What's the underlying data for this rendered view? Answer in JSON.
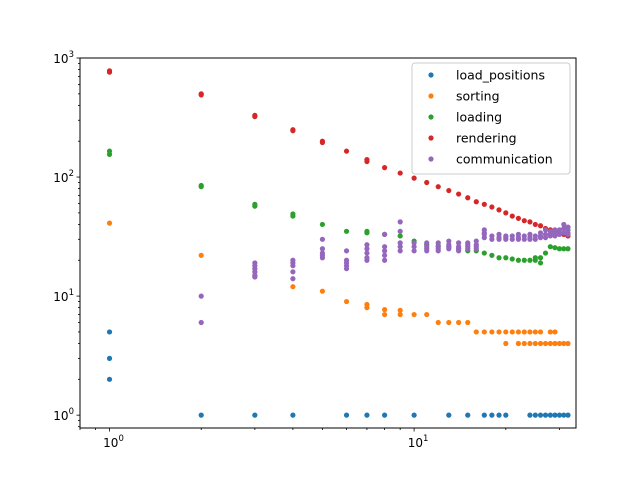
{
  "chart_data": {
    "type": "scatter",
    "title": "",
    "xlabel": "",
    "ylabel": "",
    "xscale": "log",
    "yscale": "log",
    "xlim": [
      0.8,
      34
    ],
    "ylim": [
      0.78,
      1000
    ],
    "grid": false,
    "legend_position": "top-right",
    "x_ticks": [
      {
        "value": 1,
        "base": "10",
        "exp": "0"
      },
      {
        "value": 10,
        "base": "10",
        "exp": "1"
      }
    ],
    "y_ticks": [
      {
        "value": 1,
        "base": "10",
        "exp": "0"
      },
      {
        "value": 10,
        "base": "10",
        "exp": "1"
      },
      {
        "value": 100,
        "base": "10",
        "exp": "2"
      },
      {
        "value": 1000,
        "base": "10",
        "exp": "3"
      }
    ],
    "series": [
      {
        "name": "load_positions",
        "color": "#1f77b4",
        "points": [
          [
            1,
            5
          ],
          [
            1,
            3
          ],
          [
            1,
            2
          ],
          [
            2,
            1
          ],
          [
            3,
            1
          ],
          [
            4,
            1
          ],
          [
            6,
            1
          ],
          [
            7,
            1
          ],
          [
            8,
            1
          ],
          [
            10,
            1
          ],
          [
            13,
            1
          ],
          [
            15,
            1
          ],
          [
            17,
            1
          ],
          [
            18,
            1
          ],
          [
            19,
            1
          ],
          [
            20,
            1
          ],
          [
            24,
            1
          ],
          [
            25,
            1
          ],
          [
            26,
            1
          ],
          [
            27,
            1
          ],
          [
            28,
            1
          ],
          [
            29,
            1
          ],
          [
            30,
            1
          ],
          [
            31,
            1
          ],
          [
            32,
            1
          ]
        ]
      },
      {
        "name": "sorting",
        "color": "#ff7f0e",
        "points": [
          [
            1,
            41
          ],
          [
            2,
            22
          ],
          [
            3,
            16
          ],
          [
            3,
            14.5
          ],
          [
            4,
            12
          ],
          [
            5,
            11
          ],
          [
            6,
            9
          ],
          [
            7,
            8.5
          ],
          [
            7,
            8
          ],
          [
            8,
            7.7
          ],
          [
            8,
            7
          ],
          [
            9,
            7.6
          ],
          [
            9,
            7
          ],
          [
            10,
            7
          ],
          [
            11,
            7
          ],
          [
            12,
            6
          ],
          [
            13,
            6
          ],
          [
            14,
            6
          ],
          [
            15,
            6
          ],
          [
            16,
            5
          ],
          [
            17,
            5
          ],
          [
            18,
            5
          ],
          [
            19,
            5
          ],
          [
            20,
            5
          ],
          [
            20,
            4
          ],
          [
            21,
            5
          ],
          [
            22,
            4
          ],
          [
            22,
            5
          ],
          [
            23,
            4
          ],
          [
            23,
            5
          ],
          [
            24,
            4
          ],
          [
            24,
            5
          ],
          [
            25,
            4
          ],
          [
            25,
            5
          ],
          [
            26,
            4
          ],
          [
            26,
            5
          ],
          [
            27,
            4
          ],
          [
            28,
            4
          ],
          [
            28,
            5
          ],
          [
            29,
            4
          ],
          [
            29,
            5
          ],
          [
            30,
            4
          ],
          [
            31,
            4
          ],
          [
            32,
            4
          ]
        ]
      },
      {
        "name": "loading",
        "color": "#2ca02c",
        "points": [
          [
            1,
            165
          ],
          [
            1,
            155
          ],
          [
            2,
            85
          ],
          [
            2,
            83
          ],
          [
            3,
            59
          ],
          [
            3,
            57
          ],
          [
            4,
            49
          ],
          [
            4,
            47
          ],
          [
            5,
            40
          ],
          [
            6,
            35
          ],
          [
            7,
            35
          ],
          [
            7,
            34
          ],
          [
            8,
            33
          ],
          [
            9,
            32
          ],
          [
            10,
            29
          ],
          [
            11,
            27
          ],
          [
            12,
            26.5
          ],
          [
            13,
            26
          ],
          [
            14,
            25
          ],
          [
            15,
            24
          ],
          [
            16,
            24
          ],
          [
            17,
            23
          ],
          [
            18,
            22
          ],
          [
            19,
            21
          ],
          [
            20,
            21
          ],
          [
            21,
            20.5
          ],
          [
            22,
            20
          ],
          [
            23,
            20
          ],
          [
            24,
            20
          ],
          [
            25,
            21
          ],
          [
            25,
            20
          ],
          [
            26,
            21
          ],
          [
            26,
            19
          ],
          [
            27,
            23
          ],
          [
            28,
            26
          ],
          [
            29,
            25.5
          ],
          [
            30,
            25
          ],
          [
            31,
            25
          ],
          [
            32,
            25
          ]
        ]
      },
      {
        "name": "rendering",
        "color": "#d62728",
        "points": [
          [
            1,
            780
          ],
          [
            1,
            760
          ],
          [
            2,
            500
          ],
          [
            2,
            490
          ],
          [
            3,
            330
          ],
          [
            3,
            322
          ],
          [
            4,
            250
          ],
          [
            4,
            245
          ],
          [
            5,
            200
          ],
          [
            5,
            195
          ],
          [
            6,
            165
          ],
          [
            7,
            140
          ],
          [
            7,
            135
          ],
          [
            8,
            120
          ],
          [
            9,
            108
          ],
          [
            10,
            98
          ],
          [
            11,
            90
          ],
          [
            12,
            83
          ],
          [
            13,
            77
          ],
          [
            14,
            72
          ],
          [
            15,
            67
          ],
          [
            16,
            62
          ],
          [
            17,
            59
          ],
          [
            18,
            56
          ],
          [
            19,
            53
          ],
          [
            20,
            50
          ],
          [
            21,
            47
          ],
          [
            22,
            45
          ],
          [
            23,
            43
          ],
          [
            24,
            42
          ],
          [
            25,
            40
          ],
          [
            26,
            39
          ],
          [
            27,
            37
          ],
          [
            28,
            36
          ],
          [
            29,
            35
          ],
          [
            30,
            34
          ],
          [
            31,
            33
          ],
          [
            32,
            32
          ]
        ]
      },
      {
        "name": "communication",
        "color": "#9467bd",
        "points": [
          [
            2,
            10
          ],
          [
            2,
            6
          ],
          [
            3,
            19
          ],
          [
            3,
            18
          ],
          [
            3,
            17
          ],
          [
            3,
            16
          ],
          [
            3,
            15
          ],
          [
            3,
            14.5
          ],
          [
            4,
            20
          ],
          [
            4,
            19
          ],
          [
            4,
            18
          ],
          [
            4,
            16
          ],
          [
            4,
            14
          ],
          [
            5,
            30
          ],
          [
            5,
            25
          ],
          [
            5,
            23
          ],
          [
            5,
            22
          ],
          [
            5,
            21
          ],
          [
            6,
            24
          ],
          [
            6,
            20
          ],
          [
            6,
            19
          ],
          [
            6,
            18
          ],
          [
            6,
            17
          ],
          [
            7,
            27
          ],
          [
            7,
            25
          ],
          [
            7,
            23
          ],
          [
            7,
            21
          ],
          [
            7,
            20
          ],
          [
            8,
            33
          ],
          [
            8,
            26
          ],
          [
            8,
            24
          ],
          [
            8,
            22
          ],
          [
            8,
            20
          ],
          [
            9,
            42
          ],
          [
            9,
            35
          ],
          [
            9,
            28
          ],
          [
            9,
            26
          ],
          [
            9,
            24
          ],
          [
            10,
            28
          ],
          [
            10,
            26
          ],
          [
            10,
            24
          ],
          [
            11,
            28
          ],
          [
            11,
            26
          ],
          [
            11,
            25
          ],
          [
            11,
            24
          ],
          [
            12,
            28
          ],
          [
            12,
            26
          ],
          [
            12,
            25
          ],
          [
            12,
            24
          ],
          [
            13,
            29
          ],
          [
            13,
            27
          ],
          [
            13,
            26
          ],
          [
            13,
            25
          ],
          [
            14,
            28
          ],
          [
            14,
            26
          ],
          [
            14,
            25
          ],
          [
            14,
            24
          ],
          [
            15,
            28
          ],
          [
            15,
            27
          ],
          [
            15,
            26
          ],
          [
            15,
            25
          ],
          [
            16,
            29
          ],
          [
            16,
            27
          ],
          [
            16,
            26
          ],
          [
            16,
            25
          ],
          [
            17,
            36
          ],
          [
            17,
            34
          ],
          [
            17,
            33
          ],
          [
            17,
            31
          ],
          [
            18,
            32
          ],
          [
            18,
            30
          ],
          [
            19,
            33
          ],
          [
            19,
            31
          ],
          [
            19,
            30
          ],
          [
            20,
            32
          ],
          [
            20,
            31
          ],
          [
            20,
            30
          ],
          [
            21,
            32
          ],
          [
            21,
            30
          ],
          [
            22,
            33
          ],
          [
            22,
            31
          ],
          [
            22,
            30
          ],
          [
            23,
            32
          ],
          [
            23,
            30
          ],
          [
            24,
            33
          ],
          [
            24,
            31
          ],
          [
            24,
            30
          ],
          [
            25,
            32
          ],
          [
            25,
            30
          ],
          [
            26,
            34
          ],
          [
            26,
            32
          ],
          [
            26,
            31
          ],
          [
            27,
            36
          ],
          [
            27,
            33
          ],
          [
            27,
            31
          ],
          [
            28,
            35
          ],
          [
            28,
            33
          ],
          [
            28,
            32
          ],
          [
            29,
            36
          ],
          [
            29,
            34
          ],
          [
            29,
            32
          ],
          [
            30,
            36
          ],
          [
            30,
            34
          ],
          [
            30,
            33
          ],
          [
            31,
            40
          ],
          [
            31,
            37
          ],
          [
            31,
            34
          ],
          [
            32,
            38
          ],
          [
            32,
            36
          ],
          [
            32,
            34
          ],
          [
            32,
            33
          ]
        ]
      }
    ]
  }
}
